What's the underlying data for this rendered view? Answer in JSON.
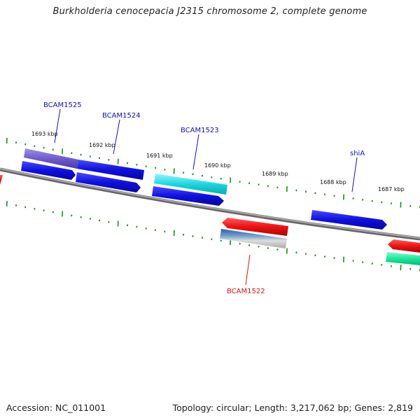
{
  "title": "Burkholderia cenocepacia J2315 chromosome 2, complete genome",
  "accession": "Accession: NC_011001",
  "summary": "Topology: circular; Length: 3,217,062 bp; Genes: 2,819",
  "colors": {
    "backbone": "#888888",
    "tick": "#1a8a1a",
    "blue": "#1010e0",
    "red": "#ee1111",
    "cyan": "#1ad8e0",
    "violet": "#6e5cd0",
    "steel": "#4f7fb8",
    "mint": "#1ae89a",
    "label_blue": "#1010c0",
    "label_red": "#dd1111"
  },
  "kbp_labels": [
    "1693 kbp",
    "1692 kbp",
    "1691 kbp",
    "1690 kbp",
    "1689 kbp",
    "1688 kbp",
    "1687 kbp"
  ],
  "gene_labels": [
    {
      "text": "BCAM1525",
      "color": "label_blue"
    },
    {
      "text": "BCAM1524",
      "color": "label_blue"
    },
    {
      "text": "BCAM1523",
      "color": "label_blue"
    },
    {
      "text": "shiA",
      "color": "label_blue"
    },
    {
      "text": "BCAM1522",
      "color": "label_red"
    }
  ]
}
